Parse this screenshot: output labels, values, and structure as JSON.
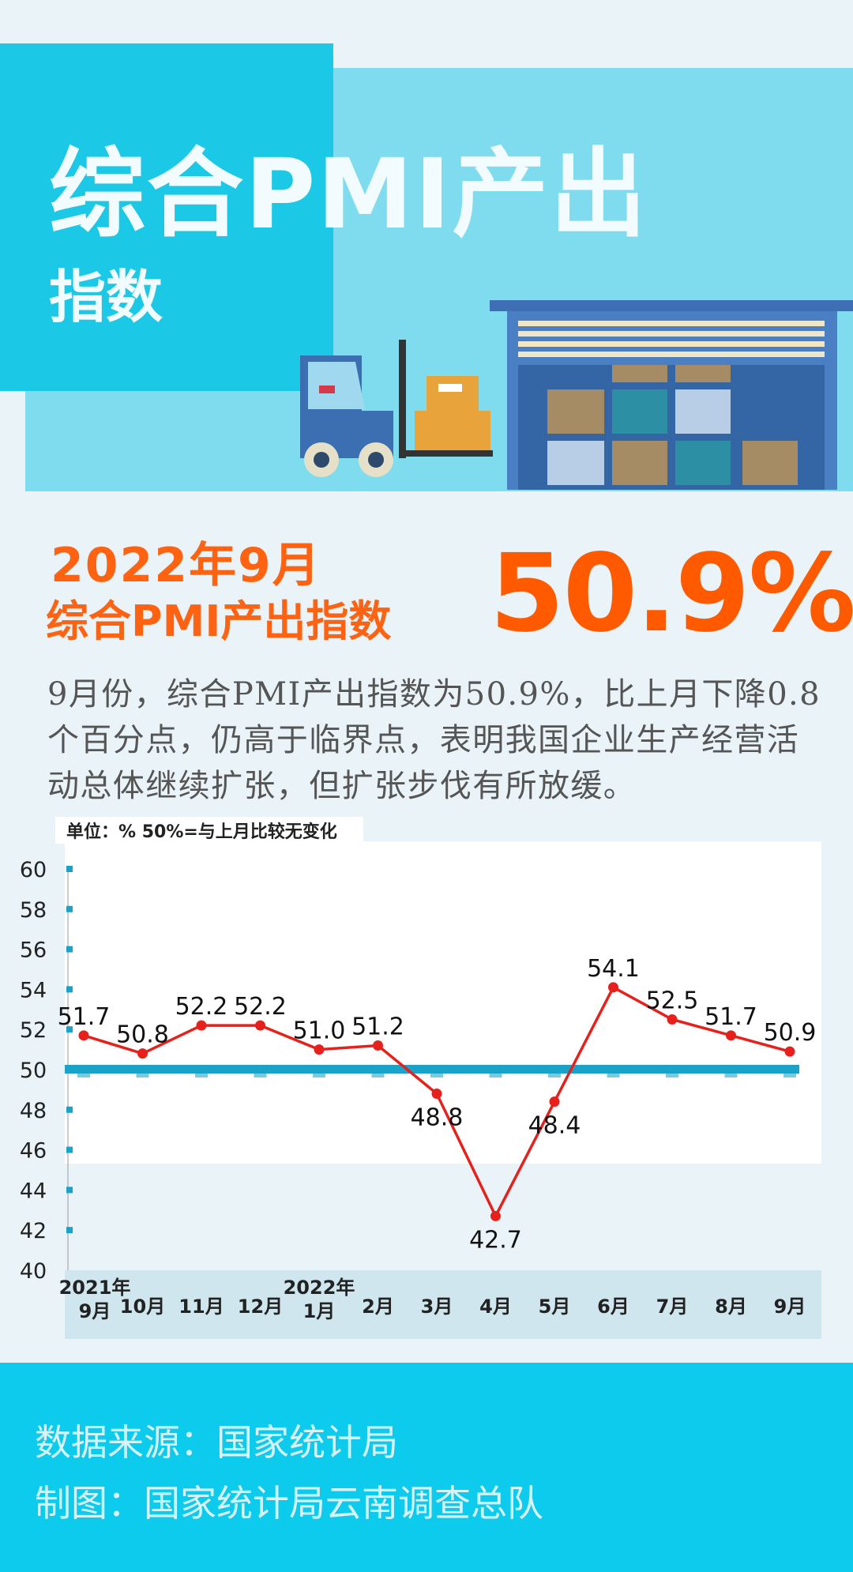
{
  "header": {
    "title": "综合PMI产出",
    "subtitle": "指数"
  },
  "headline": {
    "date": "2022年9月",
    "label": "综合PMI产出指数",
    "value": "50.9%"
  },
  "description": "9月份，综合PMI产出指数为50.9%，比上月下降0.8个百分点，仍高于临界点，表明我国企业生产经营活动总体继续扩张，但扩张步伐有所放缓。",
  "colors": {
    "accent_orange": "#ff5a00",
    "series_red": "#e8201c",
    "reference_line": "#1aa3c8",
    "header_cyan": "#1bc9e6",
    "footer_cyan": "#0ccbed"
  },
  "chart_data": {
    "type": "line",
    "note": "单位：%  50%=与上月比较无变化",
    "categories": [
      "2021年\n9月",
      "10月",
      "11月",
      "12月",
      "2022年\n1月",
      "2月",
      "3月",
      "4月",
      "5月",
      "6月",
      "7月",
      "8月",
      "9月"
    ],
    "series": [
      {
        "values": [
          51.7,
          50.8,
          52.2,
          52.2,
          51.0,
          51.2,
          48.8,
          42.7,
          48.4,
          54.1,
          52.5,
          51.7,
          50.9
        ]
      }
    ],
    "data_labels": [
      "51.7",
      "50.8",
      "52.2",
      "52.2",
      "51.0",
      "51.2",
      "48.8",
      "42.7",
      "48.4",
      "54.1",
      "52.5",
      "51.7",
      "50.9"
    ],
    "reference_line": 50,
    "ylim": [
      40,
      60
    ],
    "yticks": [
      40,
      42,
      44,
      46,
      48,
      50,
      52,
      54,
      56,
      58,
      60
    ],
    "grid": false,
    "legend": "none"
  },
  "footer": {
    "source": "数据来源：国家统计局",
    "credit": "制图：国家统计局云南调查总队"
  }
}
